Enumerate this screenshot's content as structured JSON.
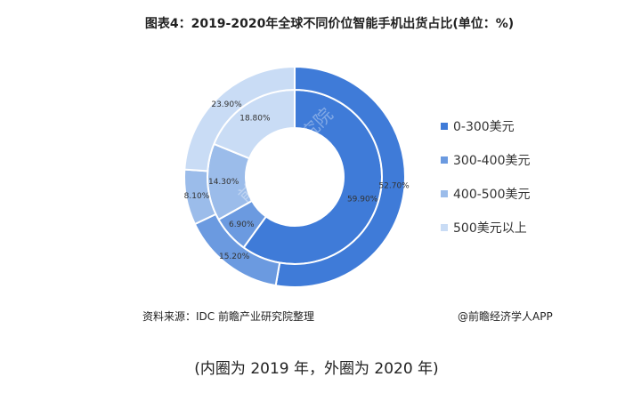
{
  "title": "图表4：2019-2020年全球不同价位智能手机出货占比(单位：%)",
  "source": "资料来源：IDC 前瞻产业研究院整理",
  "credit": "@前瞻经济学人APP",
  "caption": "(内圈为 2019 年，外圈为 2020 年)",
  "watermark": "前瞻产业研究院",
  "colors": {
    "c0": "#3f7bd8",
    "c1": "#6b9ae0",
    "c2": "#9bbcea",
    "c3": "#c9dcf5"
  },
  "chart_data": {
    "type": "donut",
    "categories": [
      "0-300美元",
      "300-400美元",
      "400-500美元",
      "500美元以上"
    ],
    "series": [
      {
        "values": [
          59.9,
          6.9,
          14.3,
          18.8
        ],
        "labels": [
          "59.90%",
          "6.90%",
          "14.30%",
          "18.80%"
        ]
      },
      {
        "values": [
          52.7,
          15.2,
          8.1,
          23.9
        ],
        "labels": [
          "52.70%",
          "15.20%",
          "8.10%",
          "23.90%"
        ]
      }
    ],
    "legend_position": "right"
  }
}
